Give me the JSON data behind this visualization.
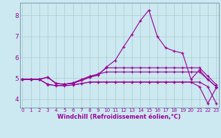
{
  "xlabel": "Windchill (Refroidissement éolien,°C)",
  "background_color": "#cce8f0",
  "grid_color": "#aacccc",
  "line_color": "#990099",
  "x_ticks": [
    0,
    1,
    2,
    3,
    4,
    5,
    6,
    7,
    8,
    9,
    10,
    11,
    12,
    13,
    14,
    15,
    16,
    17,
    18,
    19,
    20,
    21,
    22,
    23
  ],
  "y_ticks": [
    4,
    5,
    6,
    7,
    8
  ],
  "ylim": [
    3.6,
    8.6
  ],
  "xlim": [
    -0.3,
    23.3
  ],
  "lines": [
    [
      4.95,
      4.95,
      4.95,
      5.05,
      4.75,
      4.72,
      4.75,
      4.9,
      5.05,
      5.15,
      5.55,
      5.85,
      6.5,
      7.1,
      7.75,
      8.25,
      7.0,
      6.45,
      6.3,
      6.2,
      4.95,
      5.4,
      4.95,
      4.6
    ],
    [
      4.95,
      4.95,
      4.95,
      5.05,
      4.75,
      4.72,
      4.78,
      4.95,
      5.1,
      5.2,
      5.5,
      5.5,
      5.5,
      5.5,
      5.5,
      5.5,
      5.5,
      5.5,
      5.5,
      5.5,
      5.5,
      5.5,
      5.1,
      4.7
    ],
    [
      4.95,
      4.95,
      4.95,
      5.05,
      4.75,
      4.72,
      4.78,
      4.9,
      5.05,
      5.2,
      5.3,
      5.3,
      5.3,
      5.3,
      5.3,
      5.3,
      5.3,
      5.3,
      5.3,
      5.3,
      5.3,
      5.3,
      4.95,
      4.6
    ],
    [
      4.95,
      4.95,
      4.95,
      4.7,
      4.65,
      4.65,
      4.68,
      4.75,
      4.82,
      4.82,
      4.82,
      4.82,
      4.82,
      4.82,
      4.82,
      4.82,
      4.82,
      4.82,
      4.82,
      4.82,
      4.82,
      4.6,
      3.8,
      4.55
    ],
    [
      4.95,
      4.95,
      4.95,
      4.72,
      4.65,
      4.65,
      4.68,
      4.75,
      4.82,
      4.82,
      4.82,
      4.82,
      4.82,
      4.82,
      4.82,
      4.82,
      4.82,
      4.82,
      4.82,
      4.82,
      4.82,
      4.82,
      4.6,
      3.8
    ]
  ],
  "tick_fontsize_x": 5.2,
  "tick_fontsize_y": 6.5,
  "xlabel_fontsize": 6.0
}
